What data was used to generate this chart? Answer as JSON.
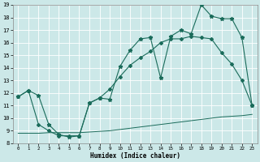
{
  "title": "",
  "xlabel": "Humidex (Indice chaleur)",
  "ylabel": "",
  "xlim": [
    -0.5,
    23.5
  ],
  "ylim": [
    8,
    19
  ],
  "xticks": [
    0,
    1,
    2,
    3,
    4,
    5,
    6,
    7,
    8,
    9,
    10,
    11,
    12,
    13,
    14,
    15,
    16,
    17,
    18,
    19,
    20,
    21,
    22,
    23
  ],
  "yticks": [
    8,
    9,
    10,
    11,
    12,
    13,
    14,
    15,
    16,
    17,
    18,
    19
  ],
  "bg_color": "#cce8e8",
  "line_color": "#1a6b5a",
  "grid_color": "#ffffff",
  "line1_x": [
    0,
    1,
    2,
    3,
    4,
    5,
    6,
    7,
    8,
    9,
    10,
    11,
    12,
    13,
    14,
    15,
    16,
    17,
    18,
    19,
    20,
    21,
    22,
    23
  ],
  "line1_y": [
    11.7,
    12.2,
    11.8,
    9.5,
    8.7,
    8.5,
    8.6,
    11.2,
    11.6,
    11.5,
    14.1,
    15.4,
    16.3,
    16.4,
    13.2,
    16.5,
    17.0,
    16.7,
    19.0,
    18.1,
    17.9,
    17.9,
    16.4,
    11.0
  ],
  "line2_x": [
    0,
    1,
    2,
    3,
    4,
    5,
    6,
    7,
    8,
    9,
    10,
    11,
    12,
    13,
    14,
    15,
    16,
    17,
    18,
    19,
    20,
    21,
    22,
    23
  ],
  "line2_y": [
    11.7,
    12.2,
    9.5,
    9.0,
    8.6,
    8.6,
    8.6,
    11.2,
    11.6,
    12.3,
    13.3,
    14.2,
    14.8,
    15.3,
    16.0,
    16.3,
    16.3,
    16.5,
    16.4,
    16.3,
    15.2,
    14.3,
    13.0,
    11.0
  ],
  "line3_x": [
    0,
    1,
    2,
    3,
    4,
    5,
    6,
    7,
    8,
    9,
    10,
    11,
    12,
    13,
    14,
    15,
    16,
    17,
    18,
    19,
    20,
    21,
    22,
    23
  ],
  "line3_y": [
    8.8,
    8.8,
    8.8,
    8.85,
    8.85,
    8.85,
    8.85,
    8.9,
    8.95,
    9.0,
    9.1,
    9.2,
    9.3,
    9.4,
    9.5,
    9.6,
    9.7,
    9.8,
    9.9,
    10.0,
    10.1,
    10.15,
    10.2,
    10.3
  ]
}
